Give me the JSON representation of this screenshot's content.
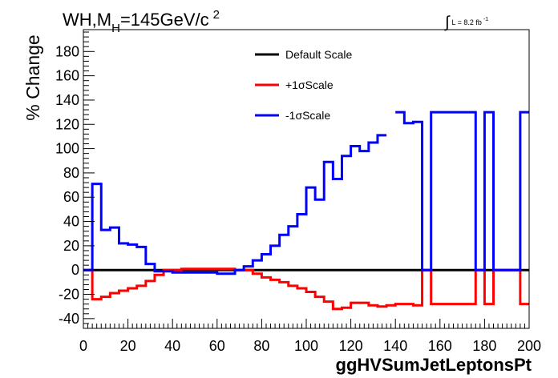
{
  "chart_data": {
    "type": "line",
    "title": "WH,M_H=145GeV/c^2",
    "title_parts": {
      "a": "WH,M",
      "sub": "H",
      "b": "=145GeV/c",
      "sup": "2"
    },
    "lumi": {
      "symbol": "∫",
      "text": "L = 8.2 fb",
      "sup": "-1"
    },
    "xlabel": "ggHVSumJetLeptonsPt",
    "ylabel": "% Change",
    "xlim": [
      0,
      200
    ],
    "ylim": [
      -48,
      198
    ],
    "x_ticks": [
      0,
      20,
      40,
      60,
      80,
      100,
      120,
      140,
      160,
      180,
      200
    ],
    "y_ticks": [
      -40,
      -20,
      0,
      20,
      40,
      60,
      80,
      100,
      120,
      140,
      160,
      180
    ],
    "legend_position": "top-center",
    "series": [
      {
        "name": "Default Scale",
        "color": "#000000",
        "bins": [
          0,
          200
        ],
        "values": [
          0
        ]
      },
      {
        "name": "+1σScale",
        "color": "#ff0000",
        "bins": [
          0,
          4,
          8,
          12,
          16,
          20,
          24,
          28,
          32,
          36,
          40,
          44,
          48,
          52,
          56,
          60,
          64,
          68,
          72,
          76,
          80,
          84,
          88,
          92,
          96,
          100,
          104,
          108,
          112,
          116,
          120,
          124,
          128,
          132,
          136,
          140,
          144,
          148,
          152,
          156,
          160,
          164,
          168,
          172,
          176,
          180,
          184,
          188,
          192,
          196,
          200
        ],
        "values": [
          0,
          -24,
          -22,
          -19,
          -17,
          -15,
          -13,
          -9,
          -4,
          0,
          0,
          1,
          1,
          1,
          1,
          1,
          1,
          0,
          0,
          -3,
          -6,
          -8,
          -10,
          -13,
          -15,
          -18,
          -22,
          -26,
          -32,
          -31,
          -27,
          -27,
          -29,
          -30,
          -29,
          -28,
          -28,
          -29,
          0,
          -28,
          -28,
          -28,
          -28,
          -28,
          0,
          -28,
          0,
          0,
          0,
          -28
        ]
      },
      {
        "name": "-1σScale",
        "color": "#0000ff",
        "bins": [
          0,
          4,
          8,
          12,
          16,
          20,
          24,
          28,
          32,
          36,
          40,
          44,
          48,
          52,
          56,
          60,
          64,
          68,
          72,
          76,
          80,
          84,
          88,
          92,
          96,
          100,
          104,
          108,
          112,
          116,
          120,
          124,
          128,
          132,
          136,
          140,
          144,
          148,
          152,
          156,
          160,
          164,
          168,
          172,
          176,
          180,
          184,
          188,
          192,
          196,
          200
        ],
        "values": [
          0,
          71,
          33,
          35,
          22,
          21,
          19,
          5,
          -1,
          -1,
          -2,
          -2,
          -2,
          -2,
          -2,
          -3,
          -3,
          0,
          3,
          8,
          13,
          20,
          29,
          36,
          46,
          68,
          58,
          89,
          75,
          94,
          102,
          98,
          105,
          111,
          null,
          130,
          121,
          122,
          0,
          130,
          130,
          130,
          130,
          130,
          0,
          130,
          0,
          0,
          0,
          130
        ]
      }
    ]
  }
}
